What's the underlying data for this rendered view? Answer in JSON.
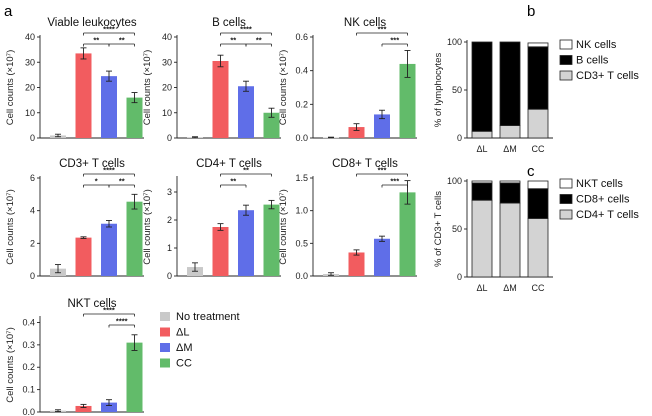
{
  "panel_labels": [
    "a",
    "b",
    "c"
  ],
  "colors": {
    "no_treatment": "#c9c9c9",
    "dL": "#f25c5f",
    "dM": "#5f6ee8",
    "CC": "#62bb6a",
    "stack_black": "#000000",
    "stack_white": "#ffffff",
    "stack_gray": "#d3d3d3"
  },
  "legend": {
    "items": [
      {
        "label": "No treatment",
        "color_key": "no_treatment"
      },
      {
        "label": "ΔL",
        "color_key": "dL"
      },
      {
        "label": "ΔM",
        "color_key": "dM"
      },
      {
        "label": "CC",
        "color_key": "CC"
      }
    ]
  },
  "chart_data": [
    {
      "type": "bar",
      "title": "Viable leukocytes",
      "ylabel": "Cell counts (×10⁷)",
      "categories": [
        "No treatment",
        "ΔL",
        "ΔM",
        "CC"
      ],
      "values": [
        1.0,
        33.5,
        24.5,
        16.0
      ],
      "errors": [
        0.5,
        2.2,
        2.0,
        2.0
      ],
      "ylim": [
        0,
        40
      ],
      "yticks": [
        "0",
        "10",
        "20",
        "30",
        "40"
      ],
      "significance": [
        {
          "from": 1,
          "to": 3,
          "label": "****"
        },
        {
          "from": 1,
          "to": 2,
          "label": "**"
        },
        {
          "from": 2,
          "to": 3,
          "label": "**"
        }
      ]
    },
    {
      "type": "bar",
      "title": "B cells",
      "ylabel": "Cell counts (×10⁷)",
      "categories": [
        "No treatment",
        "ΔL",
        "ΔM",
        "CC"
      ],
      "values": [
        0.3,
        30.5,
        20.5,
        10.0
      ],
      "errors": [
        0.2,
        2.3,
        2.0,
        1.8
      ],
      "ylim": [
        0,
        40
      ],
      "yticks": [
        "0",
        "10",
        "20",
        "30",
        "40"
      ],
      "significance": [
        {
          "from": 1,
          "to": 3,
          "label": "****"
        },
        {
          "from": 1,
          "to": 2,
          "label": "**"
        },
        {
          "from": 2,
          "to": 3,
          "label": "**"
        }
      ]
    },
    {
      "type": "bar",
      "title": "NK cells",
      "ylabel": "Cell counts (×10⁷)",
      "categories": [
        "No treatment",
        "ΔL",
        "ΔM",
        "CC"
      ],
      "values": [
        0.003,
        0.065,
        0.14,
        0.44
      ],
      "errors": [
        0.002,
        0.02,
        0.025,
        0.08
      ],
      "ylim": [
        0,
        0.6
      ],
      "yticks": [
        "0.0",
        "0.2",
        "0.4",
        "0.6"
      ],
      "significance": [
        {
          "from": 1,
          "to": 3,
          "label": "***"
        },
        {
          "from": 2,
          "to": 3,
          "label": "***"
        }
      ]
    },
    {
      "type": "bar",
      "title": "CD3+ T cells",
      "ylabel": "Cell counts (×10⁷)",
      "categories": [
        "No treatment",
        "ΔL",
        "ΔM",
        "CC"
      ],
      "values": [
        0.45,
        2.35,
        3.2,
        4.55
      ],
      "errors": [
        0.25,
        0.05,
        0.2,
        0.45
      ],
      "ylim": [
        0,
        6
      ],
      "yticks": [
        "0",
        "2",
        "4",
        "6"
      ],
      "significance": [
        {
          "from": 1,
          "to": 3,
          "label": "****"
        },
        {
          "from": 1,
          "to": 2,
          "label": "*"
        },
        {
          "from": 2,
          "to": 3,
          "label": "**"
        }
      ]
    },
    {
      "type": "bar",
      "title": "CD4+ T cells",
      "ylabel": "Cell counts (×10⁷)",
      "categories": [
        "No treatment",
        "ΔL",
        "ΔM",
        "CC"
      ],
      "values": [
        0.32,
        1.75,
        2.35,
        2.55
      ],
      "errors": [
        0.15,
        0.12,
        0.18,
        0.15
      ],
      "ylim": [
        0,
        3.5
      ],
      "yticks": [
        "0",
        "1",
        "2",
        "3"
      ],
      "significance": [
        {
          "from": 1,
          "to": 2,
          "label": "**"
        },
        {
          "from": 1,
          "to": 3,
          "label": "**"
        }
      ]
    },
    {
      "type": "bar",
      "title": "CD8+ T cells",
      "ylabel": "Cell counts (×10⁷)",
      "categories": [
        "No treatment",
        "ΔL",
        "ΔM",
        "CC"
      ],
      "values": [
        0.03,
        0.36,
        0.57,
        1.28
      ],
      "errors": [
        0.02,
        0.04,
        0.04,
        0.18
      ],
      "ylim": [
        0,
        1.5
      ],
      "yticks": [
        "0.0",
        "0.5",
        "1.0",
        "1.5"
      ],
      "significance": [
        {
          "from": 1,
          "to": 3,
          "label": "***"
        },
        {
          "from": 2,
          "to": 3,
          "label": "***"
        }
      ]
    },
    {
      "type": "bar",
      "title": "NKT cells",
      "ylabel": "Cell counts (×10⁷)",
      "categories": [
        "No treatment",
        "ΔL",
        "ΔM",
        "CC"
      ],
      "values": [
        0.006,
        0.027,
        0.042,
        0.31
      ],
      "errors": [
        0.004,
        0.007,
        0.013,
        0.035
      ],
      "ylim": [
        0,
        0.42
      ],
      "yticks": [
        "0.0",
        "0.1",
        "0.2",
        "0.3",
        "0.4"
      ],
      "significance": [
        {
          "from": 1,
          "to": 3,
          "label": "****"
        },
        {
          "from": 2,
          "to": 3,
          "label": "****"
        }
      ]
    },
    {
      "type": "bar",
      "stacked": true,
      "ylabel": "% of lymphocytes",
      "categories": [
        "ΔL",
        "ΔM",
        "CC"
      ],
      "ylim": [
        0,
        100
      ],
      "yticks": [
        "0",
        "50",
        "100"
      ],
      "series": [
        {
          "name": "CD3+ T cells",
          "color_key": "stack_gray",
          "values": [
            7,
            13,
            30
          ]
        },
        {
          "name": "B cells",
          "color_key": "stack_black",
          "values": [
            93,
            87,
            65
          ]
        },
        {
          "name": "NK cells",
          "color_key": "stack_white",
          "values": [
            0,
            0,
            4
          ]
        }
      ],
      "legend_order": [
        "NK cells",
        "B cells",
        "CD3+ T cells"
      ]
    },
    {
      "type": "bar",
      "stacked": true,
      "ylabel": "% of CD3+ T cells",
      "categories": [
        "ΔL",
        "ΔM",
        "CC"
      ],
      "ylim": [
        0,
        100
      ],
      "yticks": [
        "0",
        "50",
        "100"
      ],
      "series": [
        {
          "name": "CD4+ T cells",
          "color_key": "stack_gray",
          "values": [
            80,
            77,
            61
          ]
        },
        {
          "name": "CD8+ cells",
          "color_key": "stack_black",
          "values": [
            18,
            21,
            31
          ]
        },
        {
          "name": "NKT cells",
          "color_key": "stack_white",
          "values": [
            2,
            2,
            8
          ]
        }
      ],
      "legend_order": [
        "NKT cells",
        "CD8+ cells",
        "CD4+ T cells"
      ]
    }
  ]
}
